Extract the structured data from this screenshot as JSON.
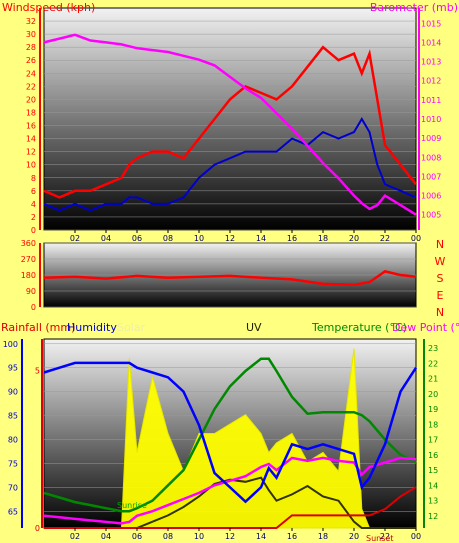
{
  "colors": {
    "background": "#ffff80",
    "wind_speed": "#ff0000",
    "wind_avg": "#0000cc",
    "barometer": "#ff00ff",
    "direction": "#ff0000",
    "rainfall": "#dd0000",
    "humidity": "#0000ff",
    "solar": "#ffff00",
    "uv": "#333300",
    "temperature": "#008800",
    "dew_point": "#ff00ff"
  },
  "chart_data": [
    {
      "type": "line",
      "title": "",
      "ylabel": "Windspeed (kph)",
      "y2label": "Barometer (mb)",
      "x_ticks": [
        "02",
        "04",
        "06",
        "08",
        "10",
        "12",
        "14",
        "16",
        "18",
        "20",
        "22",
        "00"
      ],
      "ylim": [
        0,
        34
      ],
      "y_ticks": [
        0,
        2,
        4,
        6,
        8,
        10,
        12,
        14,
        16,
        18,
        20,
        22,
        24,
        26,
        28,
        30,
        32
      ],
      "y2lim": [
        1004.2,
        1015.8
      ],
      "y2_ticks": [
        1005,
        1006,
        1007,
        1008,
        1009,
        1010,
        1011,
        1012,
        1013,
        1014,
        1015
      ],
      "x": [
        0,
        1,
        2,
        3,
        4,
        5,
        5.5,
        6,
        7,
        8,
        9,
        10,
        11,
        12,
        13,
        14,
        15,
        16,
        17,
        18,
        19,
        20,
        20.5,
        21,
        21.5,
        22,
        23,
        24
      ],
      "series": [
        {
          "name": "gust",
          "values": [
            6,
            5,
            6,
            6,
            7,
            8,
            10,
            11,
            12,
            12,
            11,
            14,
            17,
            20,
            22,
            21,
            20,
            22,
            25,
            28,
            26,
            27,
            24,
            27,
            20,
            13,
            10,
            7
          ]
        },
        {
          "name": "average",
          "values": [
            4,
            3,
            4,
            3,
            4,
            4,
            5,
            5,
            4,
            4,
            5,
            8,
            10,
            11,
            12,
            12,
            12,
            14,
            13,
            15,
            14,
            15,
            17,
            15,
            10,
            7,
            6,
            5
          ]
        },
        {
          "name": "barometer",
          "values": [
            1014,
            1014.2,
            1014.4,
            1014.1,
            1014,
            1013.9,
            1013.8,
            1013.7,
            1013.6,
            1013.5,
            1013.3,
            1013.1,
            1012.8,
            1012.2,
            1011.6,
            1011.1,
            1010.3,
            1009.5,
            1008.6,
            1007.7,
            1006.9,
            1006,
            1005.6,
            1005.3,
            1005.5,
            1006,
            1005.5,
            1005
          ]
        }
      ]
    },
    {
      "type": "line",
      "title": "",
      "y_ticks": [
        0,
        90,
        180,
        270,
        360
      ],
      "ylim": [
        0,
        360
      ],
      "direction_labels": [
        "N",
        "W",
        "S",
        "E",
        "N"
      ],
      "x": [
        0,
        2,
        4,
        6,
        8,
        10,
        12,
        14,
        16,
        18,
        20,
        21,
        22,
        23,
        24
      ],
      "series": [
        {
          "name": "direction",
          "values": [
            165,
            170,
            160,
            175,
            165,
            170,
            175,
            165,
            155,
            130,
            125,
            140,
            200,
            180,
            170
          ]
        }
      ]
    },
    {
      "type": "area",
      "title": "",
      "labels": {
        "rainfall": "Rainfall (mm)",
        "humidity": "Humidity",
        "solar": "Solar",
        "uv": "UV",
        "temperature": "Temperature (°C)",
        "dew_point": "Dew Point (°C)"
      },
      "y_left_ticks": [
        65,
        70,
        75,
        80,
        85,
        90,
        95,
        100
      ],
      "y_left_lim": [
        61.5,
        101
      ],
      "y_rain_ticks": [
        0,
        5
      ],
      "y_right_ticks": [
        12,
        13,
        14,
        15,
        16,
        17,
        18,
        19,
        20,
        21,
        22,
        23
      ],
      "y_right_lim": [
        11.2,
        23.6
      ],
      "annotations": [
        "Sunrise",
        "Sunset"
      ],
      "x": [
        0,
        1,
        2,
        3,
        4,
        5,
        5.5,
        6,
        7,
        8,
        9,
        10,
        11,
        12,
        13,
        14,
        14.5,
        15,
        16,
        17,
        18,
        19,
        20,
        20.5,
        21,
        22,
        23,
        24
      ],
      "series": [
        {
          "name": "humidity",
          "values": [
            94,
            95,
            96,
            96,
            96,
            96,
            96,
            95,
            94,
            93,
            90,
            83,
            73,
            70,
            67,
            70,
            74,
            72,
            79,
            78,
            79,
            78,
            77,
            70,
            72,
            79,
            90,
            95
          ]
        },
        {
          "name": "temperature",
          "values": [
            13.5,
            13.2,
            12.9,
            12.7,
            12.5,
            12.3,
            12.3,
            12.5,
            13,
            14,
            15,
            17,
            19,
            20.5,
            21.5,
            22.3,
            22.3,
            21.5,
            19.8,
            18.7,
            18.8,
            18.8,
            18.8,
            18.6,
            18.2,
            17,
            16,
            15.5
          ]
        },
        {
          "name": "dew_point",
          "values": [
            12,
            11.9,
            11.8,
            11.7,
            11.6,
            11.5,
            11.6,
            12,
            12.3,
            12.7,
            13.1,
            13.5,
            14,
            14.3,
            14.6,
            15.2,
            15.4,
            15,
            15.8,
            15.6,
            15.8,
            15.6,
            15.5,
            14.7,
            15.2,
            15.5,
            15.8,
            15.7
          ]
        },
        {
          "name": "uv",
          "values": [
            0,
            0,
            0,
            0,
            0,
            0,
            0,
            0,
            0.3,
            0.6,
            1,
            1.5,
            2.1,
            2.3,
            2.2,
            2.4,
            1.8,
            1.3,
            1.6,
            2,
            1.5,
            1.3,
            0.3,
            0,
            0,
            0,
            0,
            0
          ]
        },
        {
          "name": "solar",
          "values": [
            0,
            0,
            0,
            0,
            0,
            0,
            0.9,
            0.4,
            0.8,
            0.5,
            0.3,
            0.5,
            0.5,
            0.55,
            0.6,
            0.5,
            0.4,
            0.45,
            0.5,
            0.35,
            0.4,
            0.3,
            0.95,
            0.1,
            0,
            0,
            0,
            0
          ]
        },
        {
          "name": "rainfall",
          "values": [
            0,
            0,
            0,
            0,
            0,
            0,
            0,
            0,
            0,
            0,
            0,
            0,
            0,
            0,
            0,
            0,
            0,
            0,
            0.4,
            0.4,
            0.4,
            0.4,
            0.4,
            0.4,
            0.4,
            0.6,
            1.0,
            1.3
          ]
        }
      ]
    }
  ]
}
